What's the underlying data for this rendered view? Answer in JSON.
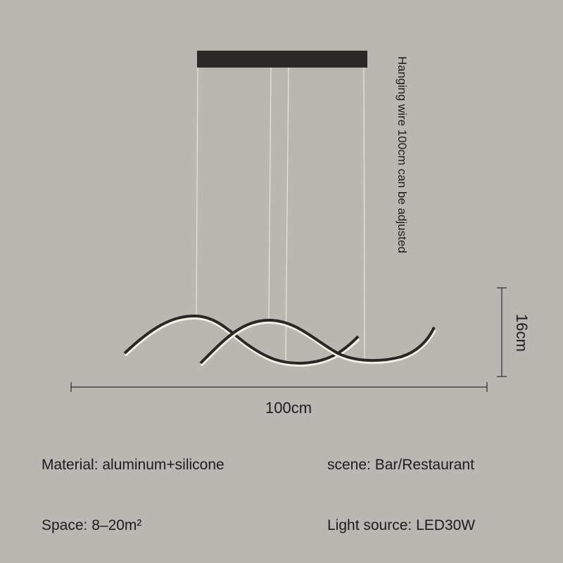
{
  "dimensions": {
    "width_label": "100cm",
    "height_label": "16cm",
    "wire_note": "Hanging wire 100cm can be adjusted"
  },
  "specs": {
    "material": "Material: aluminum+silicone",
    "scene": "scene: Bar/Restaurant",
    "space": "Space: 8–20m²",
    "light_source": "Light source: LED30W"
  },
  "colors": {
    "background": "#bab7b2",
    "lamp": "#2a2624",
    "led": "#f4efe6"
  }
}
